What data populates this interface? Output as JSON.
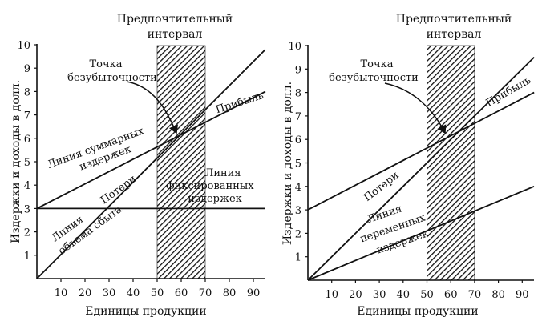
{
  "chart_data": [
    {
      "type": "line",
      "title": "Предпочтительный интервал",
      "xlabel": "Единицы продукции",
      "ylabel": "Издержки и доходы в долл.",
      "xlim": [
        0,
        95
      ],
      "ylim": [
        0,
        10
      ],
      "x_ticks": [
        10,
        20,
        30,
        40,
        50,
        60,
        70,
        80,
        90
      ],
      "y_ticks": [
        1,
        2,
        3,
        4,
        5,
        6,
        7,
        8,
        9,
        10
      ],
      "shaded_interval": [
        50,
        70
      ],
      "breakeven_point": {
        "x": 60,
        "y": 6
      },
      "series": [
        {
          "name": "Линия объема сбыта",
          "x": [
            0,
            95
          ],
          "y": [
            0,
            9.8
          ]
        },
        {
          "name": "Линия суммарных издержек",
          "x": [
            0,
            95
          ],
          "y": [
            3,
            8
          ]
        },
        {
          "name": "Линия фиксированных издержек",
          "x": [
            0,
            95
          ],
          "y": [
            3,
            3
          ]
        }
      ],
      "annotations": {
        "interval_line1": "Предпочтительный",
        "interval_line2": "интервал",
        "breakeven_line1": "Точка",
        "breakeven_line2": "безубыточности",
        "profit": "Прибыль",
        "loss": "Потери",
        "total_cost_line1": "Линия суммарных",
        "total_cost_line2": "издержек",
        "sales_line1": "Линия",
        "sales_line2": "объема сбыта",
        "fixed_line1": "Линия",
        "fixed_line2": "фиксированных",
        "fixed_line3": "издержек"
      }
    },
    {
      "type": "line",
      "title": "Предпочтительный интервал",
      "xlabel": "Единицы продукции",
      "ylabel": "Издержки и доходы в долл.",
      "xlim": [
        0,
        95
      ],
      "ylim": [
        0,
        10
      ],
      "x_ticks": [
        10,
        20,
        30,
        40,
        50,
        60,
        70,
        80,
        90
      ],
      "y_ticks": [
        1,
        2,
        3,
        4,
        5,
        6,
        7,
        8,
        9,
        10
      ],
      "shaded_interval": [
        50,
        70
      ],
      "breakeven_point": {
        "x": 60,
        "y": 6
      },
      "series": [
        {
          "name": "Линия объема сбыта",
          "x": [
            0,
            95
          ],
          "y": [
            0,
            9.5
          ]
        },
        {
          "name": "Линия суммарных издержек",
          "x": [
            0,
            95
          ],
          "y": [
            3,
            8
          ]
        },
        {
          "name": "Линия переменных издержек",
          "x": [
            0,
            95
          ],
          "y": [
            0,
            4
          ]
        }
      ],
      "annotations": {
        "interval_line1": "Предпочтительный",
        "interval_line2": "интервал",
        "breakeven_line1": "Точка",
        "breakeven_line2": "безубыточности",
        "profit": "Прибыль",
        "loss": "Потери",
        "var_line1": "Линия",
        "var_line2": "переменных",
        "var_line3": "издержек"
      }
    }
  ]
}
